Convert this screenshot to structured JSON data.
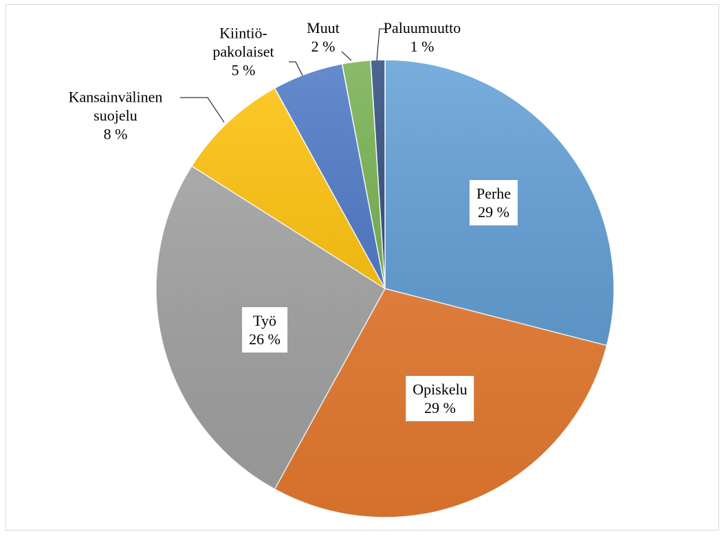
{
  "chart_data": {
    "type": "pie",
    "categories": [
      "Perhe",
      "Opiskelu",
      "Työ",
      "Kansainvälinen\nsuojelu",
      "Kiintiö-\npakolaiset",
      "Muut",
      "Paluumuutto"
    ],
    "values": [
      29,
      29,
      26,
      8,
      5,
      2,
      1
    ],
    "value_labels": [
      "29 %",
      "29 %",
      "26 %",
      "8 %",
      "5 %",
      "2 %",
      "1 %"
    ],
    "colors": [
      "#5b9bd5",
      "#ed7d31",
      "#a5a5a5",
      "#ffc000",
      "#4472c4",
      "#70ad47",
      "#264478"
    ]
  }
}
